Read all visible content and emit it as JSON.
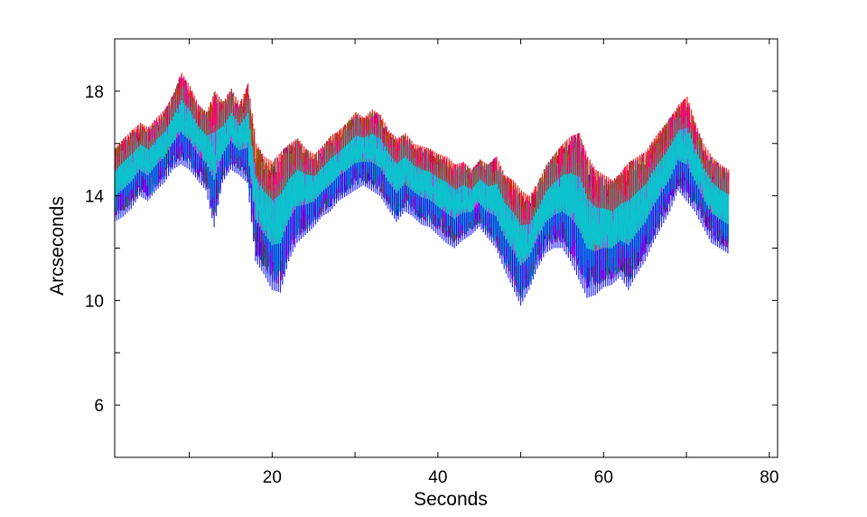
{
  "chart_data": {
    "type": "line",
    "title": "",
    "xlabel": "Seconds",
    "ylabel": "Arcseconds",
    "xlim": [
      1,
      81
    ],
    "ylim": [
      4,
      20
    ],
    "xticks": [
      20,
      40,
      60,
      80
    ],
    "xtick_labels": [
      "20",
      "40",
      "60",
      "80"
    ],
    "xminor_ticks": [
      10,
      30,
      50,
      70
    ],
    "yticks": [
      6,
      10,
      14,
      18
    ],
    "ytick_labels": [
      "6",
      "10",
      "14",
      "18"
    ],
    "yminor_ticks": [
      8,
      12,
      16
    ],
    "grid": false,
    "legend": "none",
    "series_colors": [
      "#0000ff",
      "#ff0000",
      "#00aa00",
      "#aa00aa",
      "#888800",
      "#ff00ff",
      "#00cccc"
    ],
    "x": [
      1,
      2,
      3,
      4,
      5,
      6,
      7,
      8,
      9,
      10,
      11,
      12,
      13,
      14,
      15,
      16,
      17,
      18,
      19,
      20,
      21,
      22,
      23,
      24,
      25,
      26,
      27,
      28,
      29,
      30,
      31,
      32,
      33,
      34,
      35,
      36,
      37,
      38,
      39,
      40,
      41,
      42,
      43,
      44,
      45,
      46,
      47,
      48,
      49,
      50,
      51,
      52,
      53,
      54,
      55,
      56,
      57,
      58,
      59,
      60,
      61,
      62,
      63,
      64,
      65,
      66,
      67,
      68,
      69,
      70,
      71,
      72,
      73,
      74,
      75
    ],
    "upper": [
      15.8,
      16.2,
      16.5,
      16.8,
      16.6,
      17.0,
      17.3,
      17.9,
      18.7,
      18.2,
      17.5,
      17.2,
      18.0,
      17.6,
      18.1,
      17.5,
      18.3,
      16.0,
      15.5,
      15.3,
      15.7,
      16.0,
      16.2,
      15.8,
      15.6,
      15.9,
      16.3,
      16.5,
      16.8,
      17.2,
      17.0,
      17.3,
      17.1,
      16.5,
      16.2,
      16.4,
      16.0,
      15.9,
      15.8,
      15.6,
      15.5,
      15.2,
      15.3,
      15.0,
      15.4,
      15.2,
      15.5,
      14.8,
      14.6,
      14.2,
      14.0,
      14.5,
      15.2,
      15.6,
      16.0,
      16.3,
      16.4,
      15.5,
      15.0,
      14.8,
      14.6,
      14.9,
      15.3,
      15.5,
      15.7,
      16.2,
      16.6,
      17.0,
      17.5,
      17.8,
      16.8,
      16.0,
      15.5,
      15.2,
      15.0
    ],
    "lower": [
      13.0,
      13.2,
      13.5,
      14.0,
      13.8,
      14.2,
      14.5,
      15.0,
      15.2,
      15.0,
      14.6,
      14.2,
      12.8,
      14.5,
      15.0,
      14.8,
      14.5,
      11.5,
      11.0,
      10.4,
      10.3,
      11.5,
      12.2,
      12.5,
      12.8,
      13.2,
      13.4,
      13.8,
      14.0,
      14.2,
      14.4,
      14.2,
      14.0,
      13.5,
      13.0,
      13.4,
      13.2,
      12.9,
      12.8,
      12.5,
      12.2,
      12.0,
      12.3,
      12.5,
      12.8,
      12.4,
      12.0,
      11.2,
      10.5,
      9.8,
      10.4,
      11.2,
      11.8,
      12.0,
      12.0,
      11.5,
      10.8,
      10.1,
      10.2,
      10.5,
      10.6,
      10.9,
      10.4,
      11.0,
      11.5,
      12.2,
      12.8,
      13.4,
      14.2,
      13.8,
      13.4,
      12.8,
      12.2,
      12.0,
      11.8
    ]
  }
}
